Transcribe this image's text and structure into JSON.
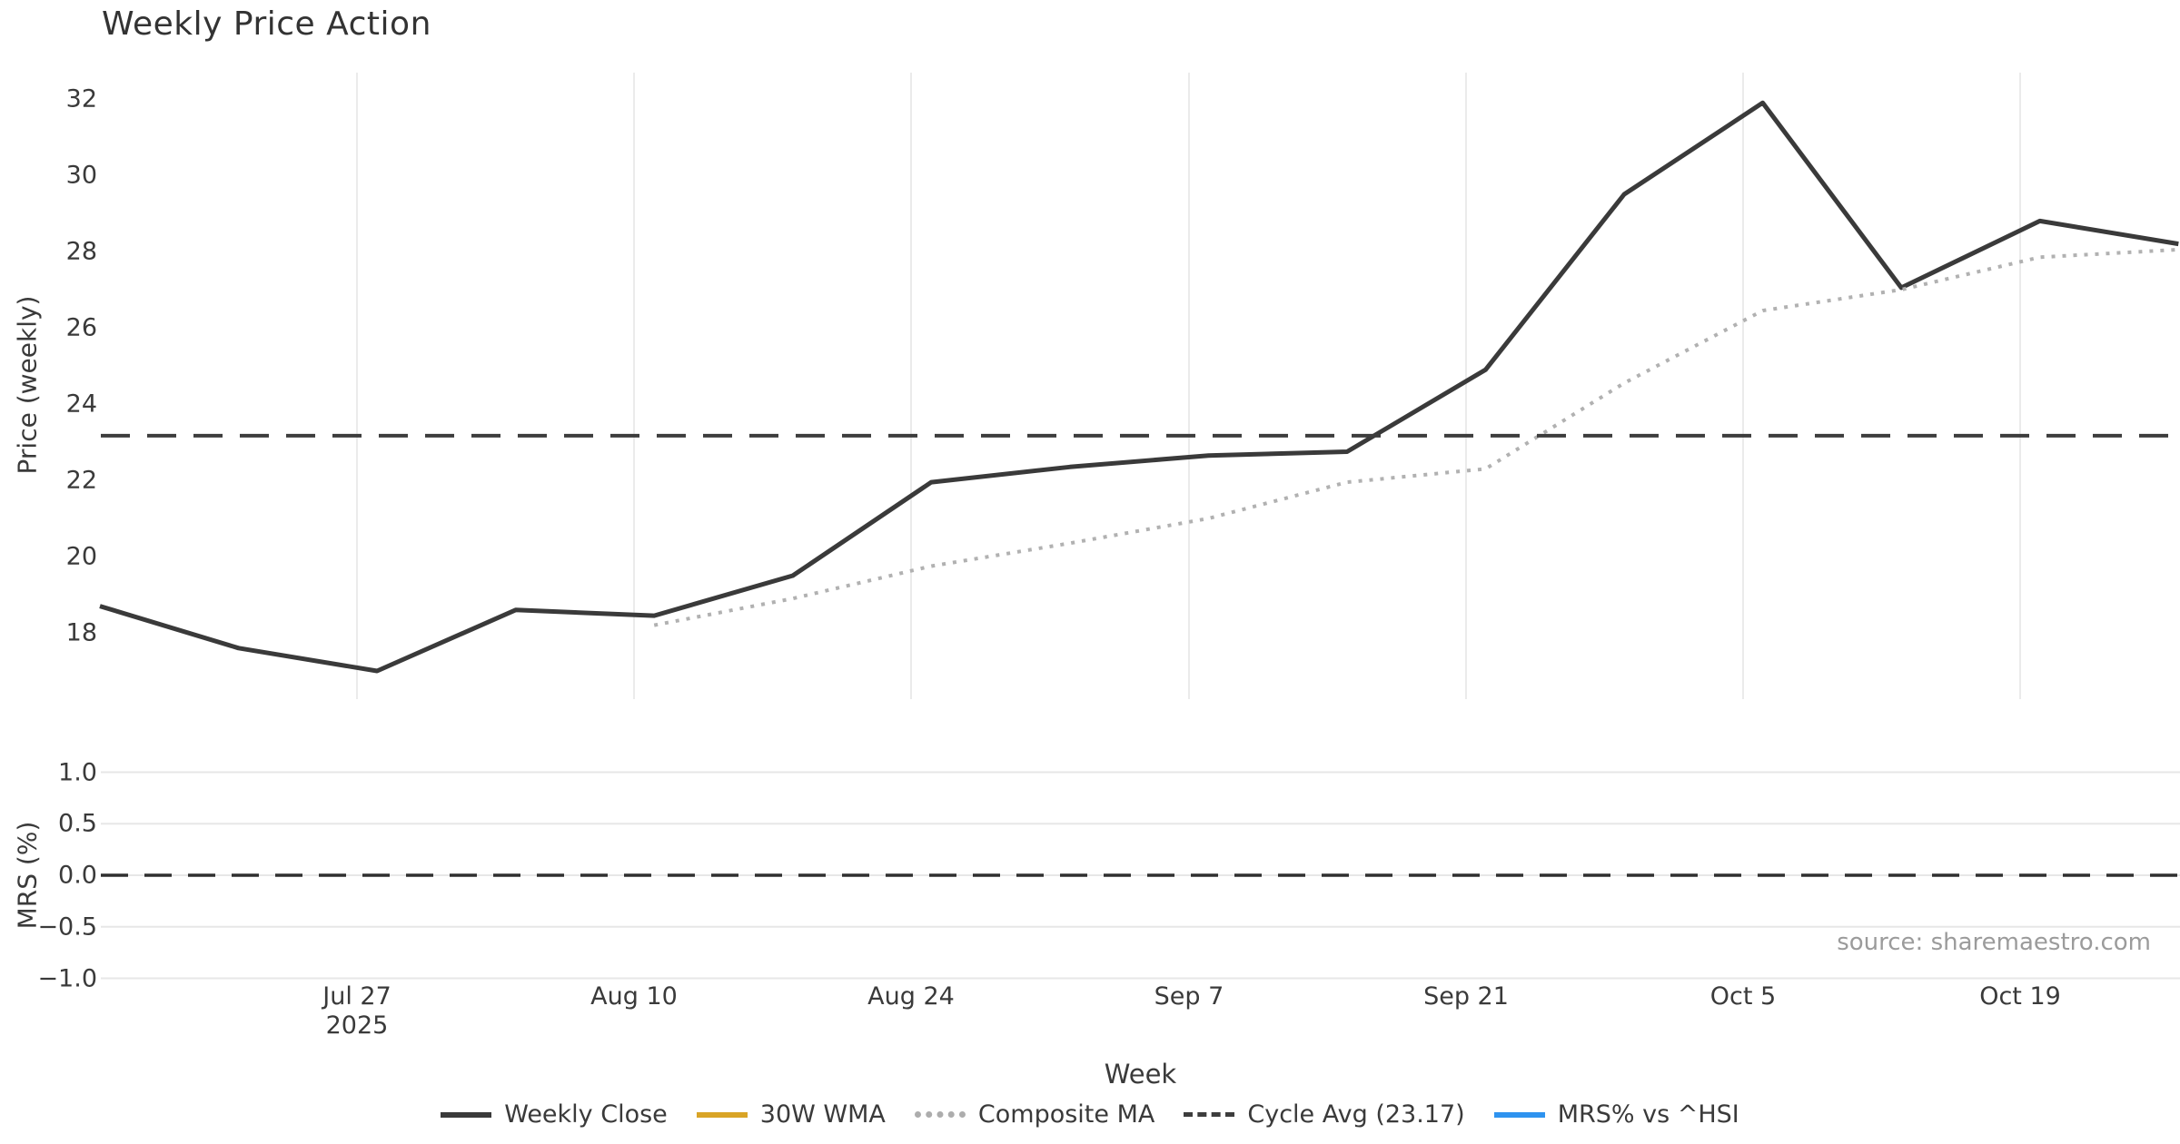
{
  "title": "Weekly Price Action",
  "source_note": "source: sharemaestro.com",
  "xlabel": "Week",
  "top_axis": {
    "ylabel": "Price (weekly)",
    "yticks": [
      32,
      30,
      28,
      26,
      24,
      22,
      20,
      18
    ]
  },
  "bottom_axis": {
    "ylabel": "MRS (%)",
    "yticks": [
      1.0,
      0.5,
      0.0,
      -0.5,
      -1.0
    ],
    "ytick_labels": [
      "1.0",
      "0.5",
      "0.0",
      "−0.5",
      "−1.0"
    ]
  },
  "xticks": [
    {
      "label": "Jul 27",
      "sublabel": "2025"
    },
    {
      "label": "Aug 10",
      "sublabel": ""
    },
    {
      "label": "Aug 24",
      "sublabel": ""
    },
    {
      "label": "Sep 7",
      "sublabel": ""
    },
    {
      "label": "Sep 21",
      "sublabel": ""
    },
    {
      "label": "Oct 5",
      "sublabel": ""
    },
    {
      "label": "Oct 19",
      "sublabel": ""
    }
  ],
  "legend": [
    {
      "label": "Weekly Close",
      "color": "#3a3a3a",
      "style": "solid"
    },
    {
      "label": "30W WMA",
      "color": "#d9a426",
      "style": "solid"
    },
    {
      "label": "Composite MA",
      "color": "#adadad",
      "style": "dotted"
    },
    {
      "label": "Cycle Avg (23.17)",
      "color": "#3d3d3d",
      "style": "dashed"
    },
    {
      "label": "MRS% vs ^HSI",
      "color": "#2e93ef",
      "style": "solid"
    }
  ],
  "chart_data": {
    "type": "line",
    "title": "Weekly Price Action",
    "xlabel": "Week",
    "subplots": [
      "Price (weekly)",
      "MRS (%)"
    ],
    "x_weekly": [
      "Jul 14",
      "Jul 21",
      "Jul 28",
      "Aug 4",
      "Aug 11",
      "Aug 18",
      "Aug 25",
      "Sep 1",
      "Sep 8",
      "Sep 15",
      "Sep 22",
      "Sep 29",
      "Oct 6",
      "Oct 13",
      "Oct 20",
      "Oct 27"
    ],
    "xtick_labels": [
      "Jul 27\n2025",
      "Aug 10",
      "Aug 24",
      "Sep 7",
      "Sep 21",
      "Oct 5",
      "Oct 19"
    ],
    "series": [
      {
        "name": "Weekly Close",
        "subplot": "price",
        "style": "solid",
        "color": "#3a3a3a",
        "values": [
          18.7,
          17.6,
          17.0,
          18.6,
          18.45,
          19.5,
          21.95,
          22.35,
          22.65,
          22.75,
          24.9,
          29.5,
          31.9,
          27.05,
          28.8,
          28.2
        ]
      },
      {
        "name": "30W WMA",
        "subplot": "price",
        "style": "solid",
        "color": "#d9a426",
        "values": []
      },
      {
        "name": "Composite MA",
        "subplot": "price",
        "style": "dotted",
        "color": "#b1b1b1",
        "values": [
          null,
          null,
          null,
          null,
          18.2,
          18.9,
          19.75,
          20.35,
          21.0,
          21.95,
          22.3,
          24.55,
          26.45,
          27.0,
          27.85,
          28.05
        ]
      },
      {
        "name": "Cycle Avg (23.17)",
        "subplot": "price",
        "style": "dashed",
        "color": "#3d3d3d",
        "constant": 23.17
      },
      {
        "name": "MRS% vs ^HSI",
        "subplot": "mrs",
        "style": "solid",
        "color": "#2e93ef",
        "values": [],
        "reference_zero_line": 0.0
      }
    ],
    "price_axis": {
      "ticks": [
        18,
        20,
        22,
        24,
        26,
        28,
        30,
        32
      ],
      "approx_ylim": [
        16.2,
        32.7
      ]
    },
    "mrs_axis": {
      "ticks": [
        -1.0,
        -0.5,
        0.0,
        0.5,
        1.0
      ],
      "approx_ylim": [
        -1.1,
        1.1
      ]
    },
    "grid": {
      "price_panel": "vertical gridlines at x ticks",
      "mrs_panel": "horizontal gridlines at y ticks"
    },
    "legend_position": "bottom-center"
  }
}
